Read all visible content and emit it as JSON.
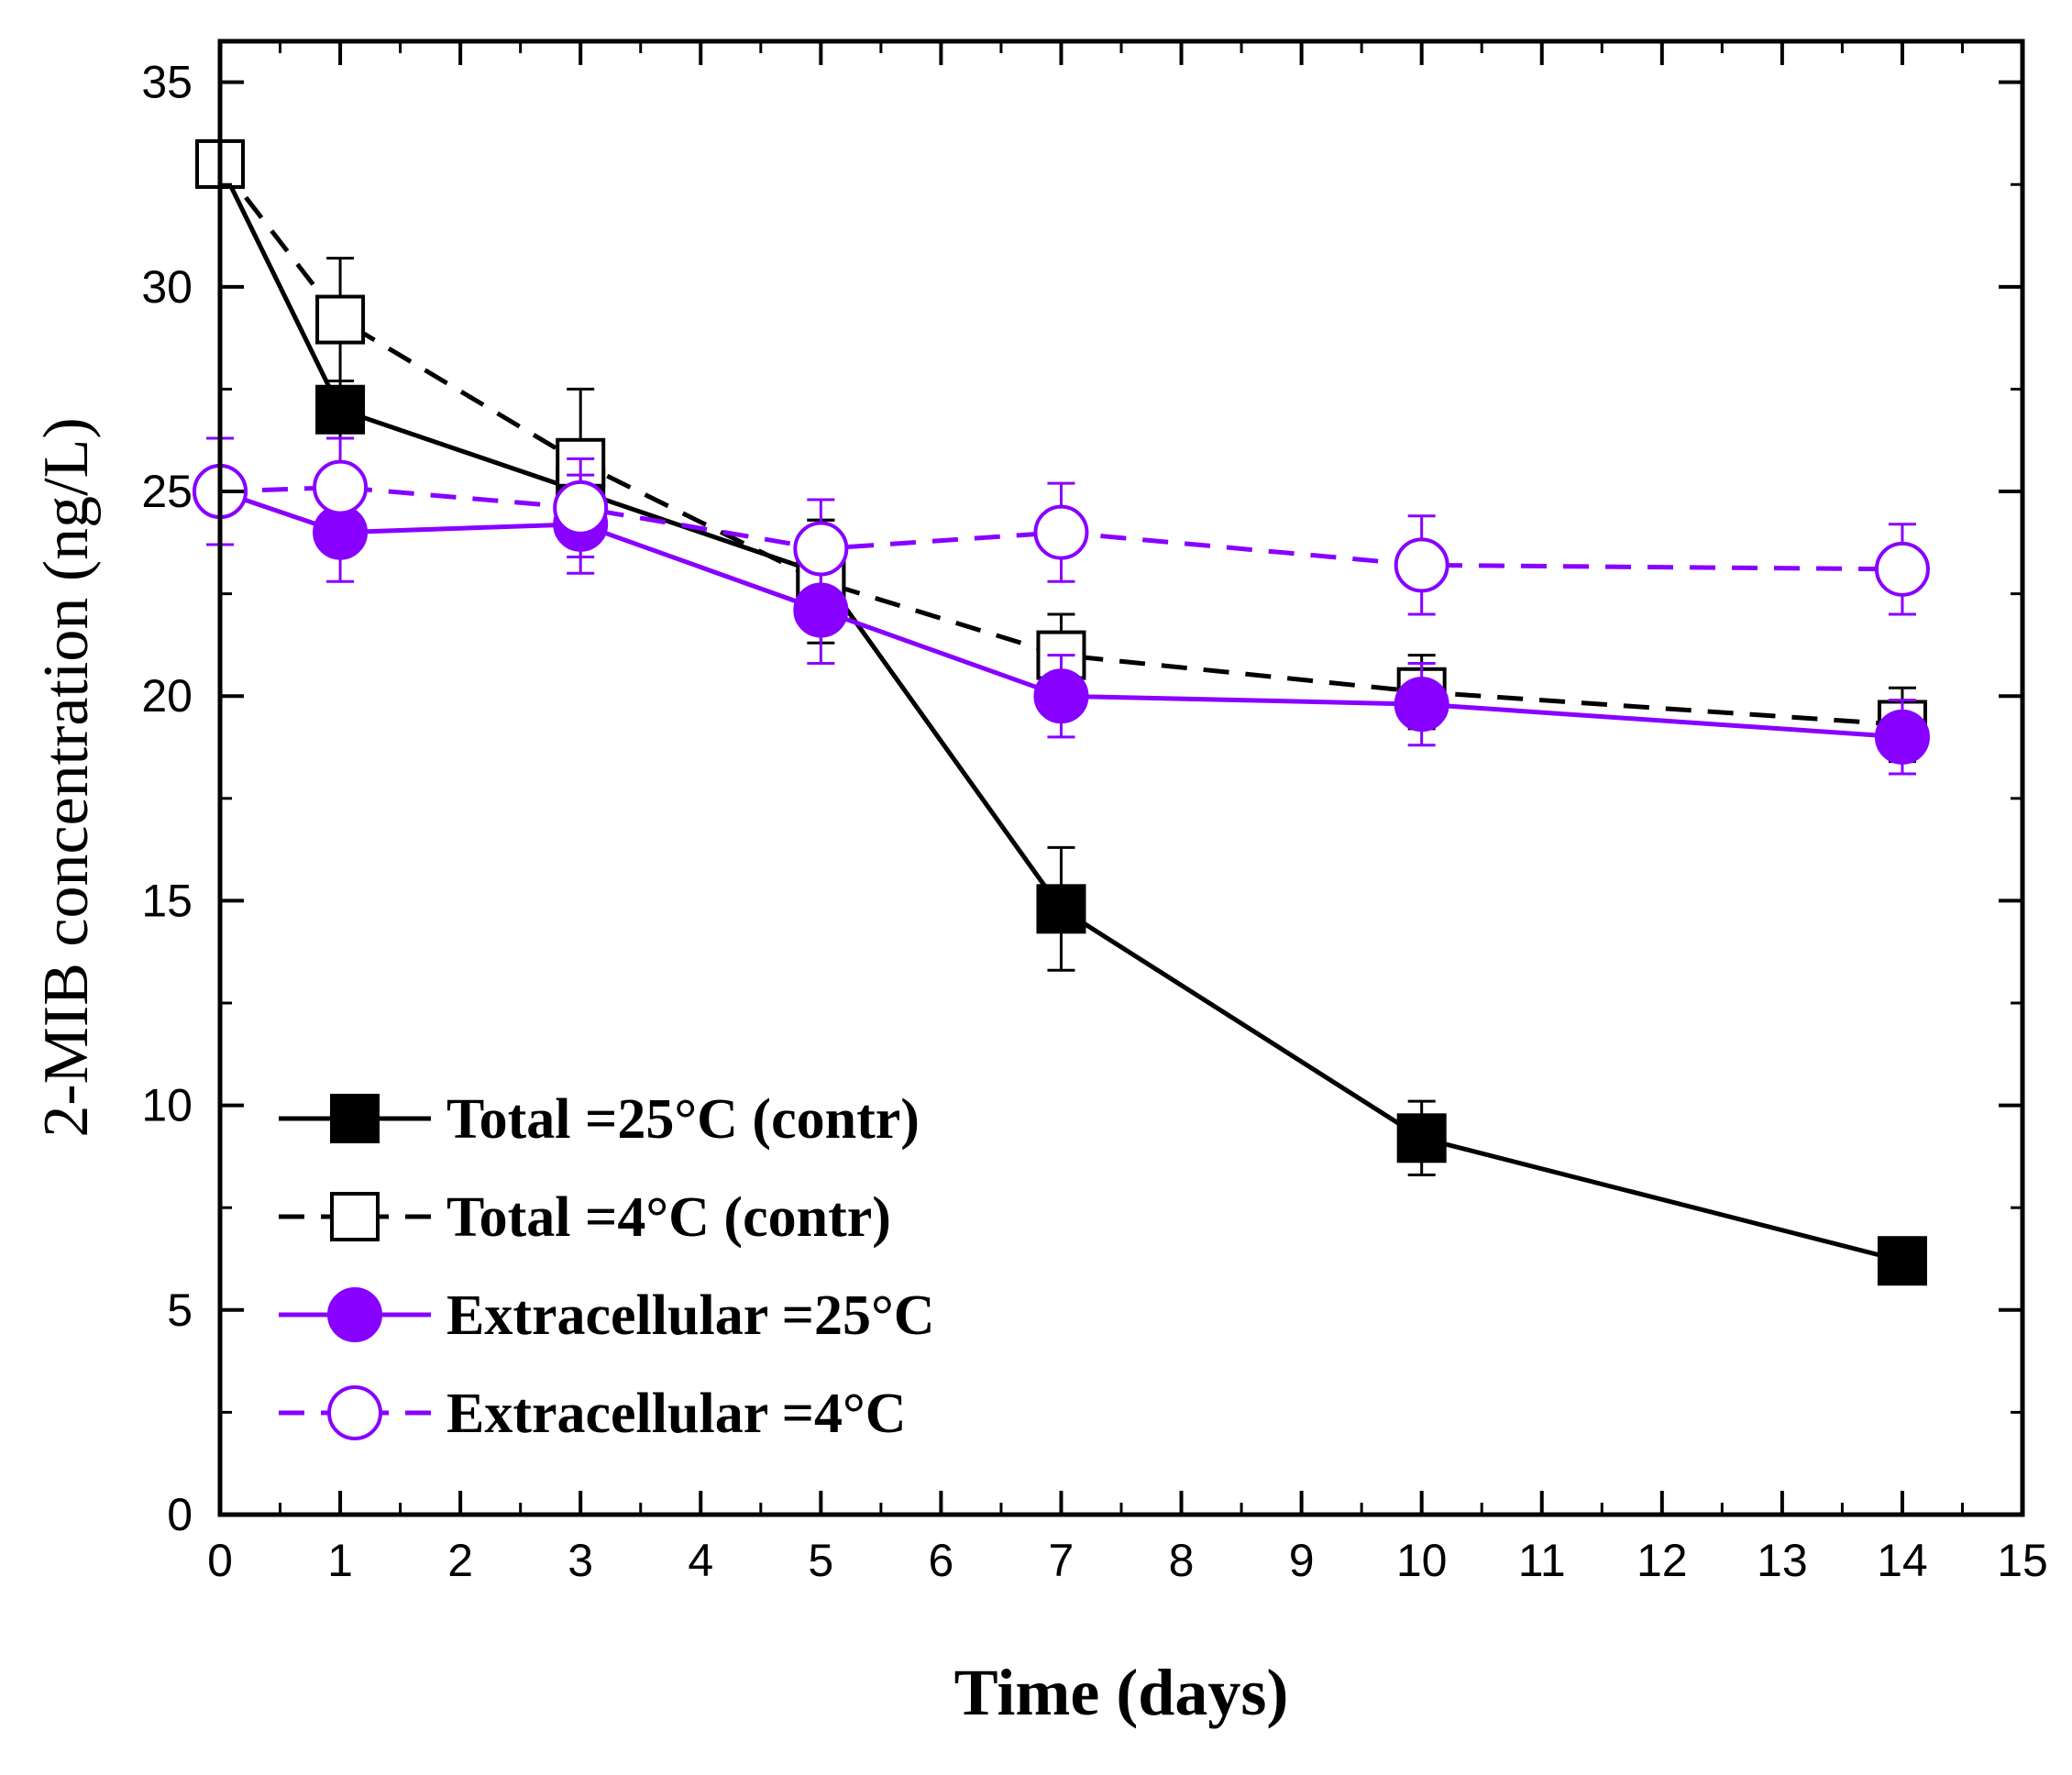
{
  "chart_data": {
    "type": "line",
    "title": "",
    "xlabel": "Time (days)",
    "ylabel": "2-MIB concentration (ng/L)",
    "xlim": [
      0,
      15
    ],
    "ylim": [
      0,
      36
    ],
    "x_ticks": [
      0,
      1,
      2,
      3,
      4,
      5,
      6,
      7,
      8,
      9,
      10,
      11,
      12,
      13,
      14,
      15
    ],
    "y_ticks": [
      0,
      5,
      10,
      15,
      20,
      25,
      30,
      35
    ],
    "legend_position": "bottom-left",
    "grid": false,
    "series": [
      {
        "name": "Total =25°C (contr)",
        "color": "#000000",
        "marker": "square",
        "filled": true,
        "dashed": false,
        "x": [
          0,
          1,
          3,
          5,
          7,
          10,
          14
        ],
        "y": [
          33.0,
          27.0,
          25.0,
          23.0,
          14.8,
          9.2,
          6.2
        ],
        "err": [
          0,
          0.7,
          1.2,
          1.3,
          1.5,
          0.9,
          0
        ]
      },
      {
        "name": "Total =4°C (contr)",
        "color": "#000000",
        "marker": "square",
        "filled": false,
        "dashed": true,
        "x": [
          0,
          1,
          3,
          5,
          7,
          10,
          14
        ],
        "y": [
          33.0,
          29.2,
          25.7,
          22.8,
          21.0,
          20.1,
          19.3
        ],
        "err": [
          0,
          1.5,
          1.8,
          1.5,
          1.0,
          0.9,
          0.9
        ]
      },
      {
        "name": "Extracellular =25°C",
        "color": "#8800ff",
        "marker": "circle",
        "filled": true,
        "dashed": false,
        "x": [
          0,
          1,
          3,
          5,
          7,
          10,
          14
        ],
        "y": [
          25.0,
          24.0,
          24.2,
          22.1,
          20.0,
          19.8,
          19.0
        ],
        "err": [
          0,
          1.2,
          1.2,
          1.3,
          1.0,
          1.0,
          0.9
        ]
      },
      {
        "name": "Extracellular =4°C",
        "color": "#8800ff",
        "marker": "circle",
        "filled": false,
        "dashed": true,
        "x": [
          0,
          1,
          3,
          5,
          7,
          10,
          14
        ],
        "y": [
          25.0,
          25.1,
          24.6,
          23.6,
          24.0,
          23.2,
          23.1
        ],
        "err": [
          1.3,
          1.2,
          1.2,
          1.2,
          1.2,
          1.2,
          1.1
        ]
      }
    ]
  }
}
